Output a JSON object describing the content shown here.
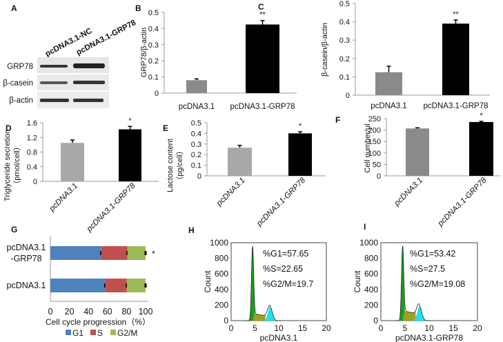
{
  "panels": {
    "A": {
      "label": "A",
      "lanes": [
        "pcDNA3.1-NC",
        "pcDNA3.1-GRP78"
      ],
      "rows": [
        "GRP78",
        "β-casein",
        "β-actin"
      ]
    }
  },
  "chart_data": [
    {
      "id": "B",
      "label": "B",
      "type": "bar",
      "title": "",
      "xlabel": "",
      "ylabel": "GRP78/β-actin",
      "ylim": [
        0,
        0.5
      ],
      "yticks": [
        "0",
        "0.1",
        "0.2",
        "0.3",
        "0.4",
        "0.5"
      ],
      "categories": [
        "pcDNA3.1",
        "pcDNA3.1-GRP78"
      ],
      "values": [
        0.08,
        0.425
      ],
      "errors": [
        0.008,
        0.025
      ],
      "significance": [
        "",
        "**"
      ],
      "colors": [
        "#8a8a8a",
        "#000000"
      ]
    },
    {
      "id": "C",
      "label": "C",
      "type": "bar",
      "title": "",
      "xlabel": "",
      "ylabel": "β-casein/β-actin",
      "ylim": [
        0,
        0.5
      ],
      "yticks": [
        "0",
        "0.1",
        "0.2",
        "0.3",
        "0.4",
        "0.5"
      ],
      "categories": [
        "pcDNA3.1",
        "pcDNA3.1-GRP78"
      ],
      "values": [
        0.125,
        0.39
      ],
      "errors": [
        0.033,
        0.02
      ],
      "significance": [
        "",
        "**"
      ],
      "colors": [
        "#8a8a8a",
        "#000000"
      ]
    },
    {
      "id": "D",
      "label": "D",
      "type": "bar",
      "title": "",
      "xlabel": "",
      "ylabel": "Triglyceride secretion",
      "ylabel2": "（pmol/cell）",
      "ylim": [
        0,
        1.6
      ],
      "yticks": [
        "0",
        "0.4",
        "0.8",
        "1.2",
        "1.6"
      ],
      "categories": [
        "pcDNA3.1",
        "pcDNA3.1-GRP78"
      ],
      "values": [
        1.05,
        1.42
      ],
      "errors": [
        0.08,
        0.08
      ],
      "significance": [
        "",
        "*"
      ],
      "colors": [
        "#a8a8a8",
        "#000000"
      ]
    },
    {
      "id": "E",
      "label": "E",
      "type": "bar",
      "title": "",
      "xlabel": "",
      "ylabel": "Lactose content",
      "ylabel2": "（pg/cell）",
      "ylim": [
        0,
        0.5
      ],
      "yticks": [
        "0",
        "0.1",
        "0.2",
        "0.3",
        "0.4",
        "0.5"
      ],
      "categories": [
        "pcDNA3.1",
        "pcDNA3.1-GRP78"
      ],
      "values": [
        0.265,
        0.4
      ],
      "errors": [
        0.022,
        0.015
      ],
      "significance": [
        "",
        "*"
      ],
      "colors": [
        "#a8a8a8",
        "#000000"
      ]
    },
    {
      "id": "F",
      "label": "F",
      "type": "bar",
      "title": "",
      "xlabel": "",
      "ylabel": "Cell number/μl",
      "ylim": [
        0,
        250
      ],
      "yticks": [
        "0",
        "50",
        "100",
        "150",
        "200",
        "250"
      ],
      "categories": [
        "pcDNA3.1",
        "pcDNA3.1-GRP78"
      ],
      "values": [
        207,
        235
      ],
      "errors": [
        3,
        3
      ],
      "significance": [
        "",
        "*"
      ],
      "colors": [
        "#8a8a8a",
        "#000000"
      ]
    },
    {
      "id": "G",
      "label": "G",
      "type": "bar",
      "orientation": "horizontal",
      "stacked": true,
      "xlabel": "Cell cycle progression（%）",
      "xlim": [
        0,
        100
      ],
      "xticks": [
        "0",
        "20",
        "40",
        "60",
        "80",
        "100"
      ],
      "categories": [
        "pcDNA3.1",
        "pcDNA3.1-GRP78"
      ],
      "category_lines": [
        [
          "pcDNA3.1"
        ],
        [
          "pcDNA3.1",
          "-GRP78"
        ]
      ],
      "series": [
        {
          "name": "G1",
          "color": "#4f81bd",
          "values": [
            57.65,
            53.42
          ]
        },
        {
          "name": "S",
          "color": "#c0504d",
          "values": [
            22.65,
            27.5
          ]
        },
        {
          "name": "G2/M",
          "color": "#9bbb59",
          "values": [
            19.7,
            19.08
          ]
        }
      ],
      "significance": [
        "",
        "*"
      ],
      "legend": "bottom"
    },
    {
      "id": "H",
      "label": "H",
      "type": "area",
      "xlabel": "pcDNA3.1",
      "ylabel": "Count",
      "xlim": [
        0,
        20
      ],
      "ylim": [
        0,
        1000
      ],
      "xticks": [
        "0",
        "5",
        "10",
        "15",
        "20"
      ],
      "yticks": [
        "0",
        "200",
        "400",
        "600",
        "800",
        "1000"
      ],
      "annotations": [
        "%G1=57.65",
        "%S=22.65",
        "%G2/M=19.7"
      ],
      "g1_peak": [
        4.5,
        950
      ],
      "g2_peak": [
        8.2,
        175
      ],
      "s_level": 90
    },
    {
      "id": "I",
      "label": "I",
      "type": "area",
      "xlabel": "pcDNA3.1-GRP78",
      "ylabel": "Count",
      "xlim": [
        0,
        20
      ],
      "ylim": [
        0,
        1000
      ],
      "xticks": [
        "0",
        "5",
        "10",
        "15",
        "20"
      ],
      "yticks": [
        "0",
        "200",
        "400",
        "600",
        "800",
        "1000"
      ],
      "annotations": [
        "%G1=53.42",
        "%S=27.5",
        "%G2/M=19.08"
      ],
      "g1_peak": [
        4.5,
        950
      ],
      "g2_peak": [
        8.0,
        180
      ],
      "s_level": 130
    }
  ]
}
